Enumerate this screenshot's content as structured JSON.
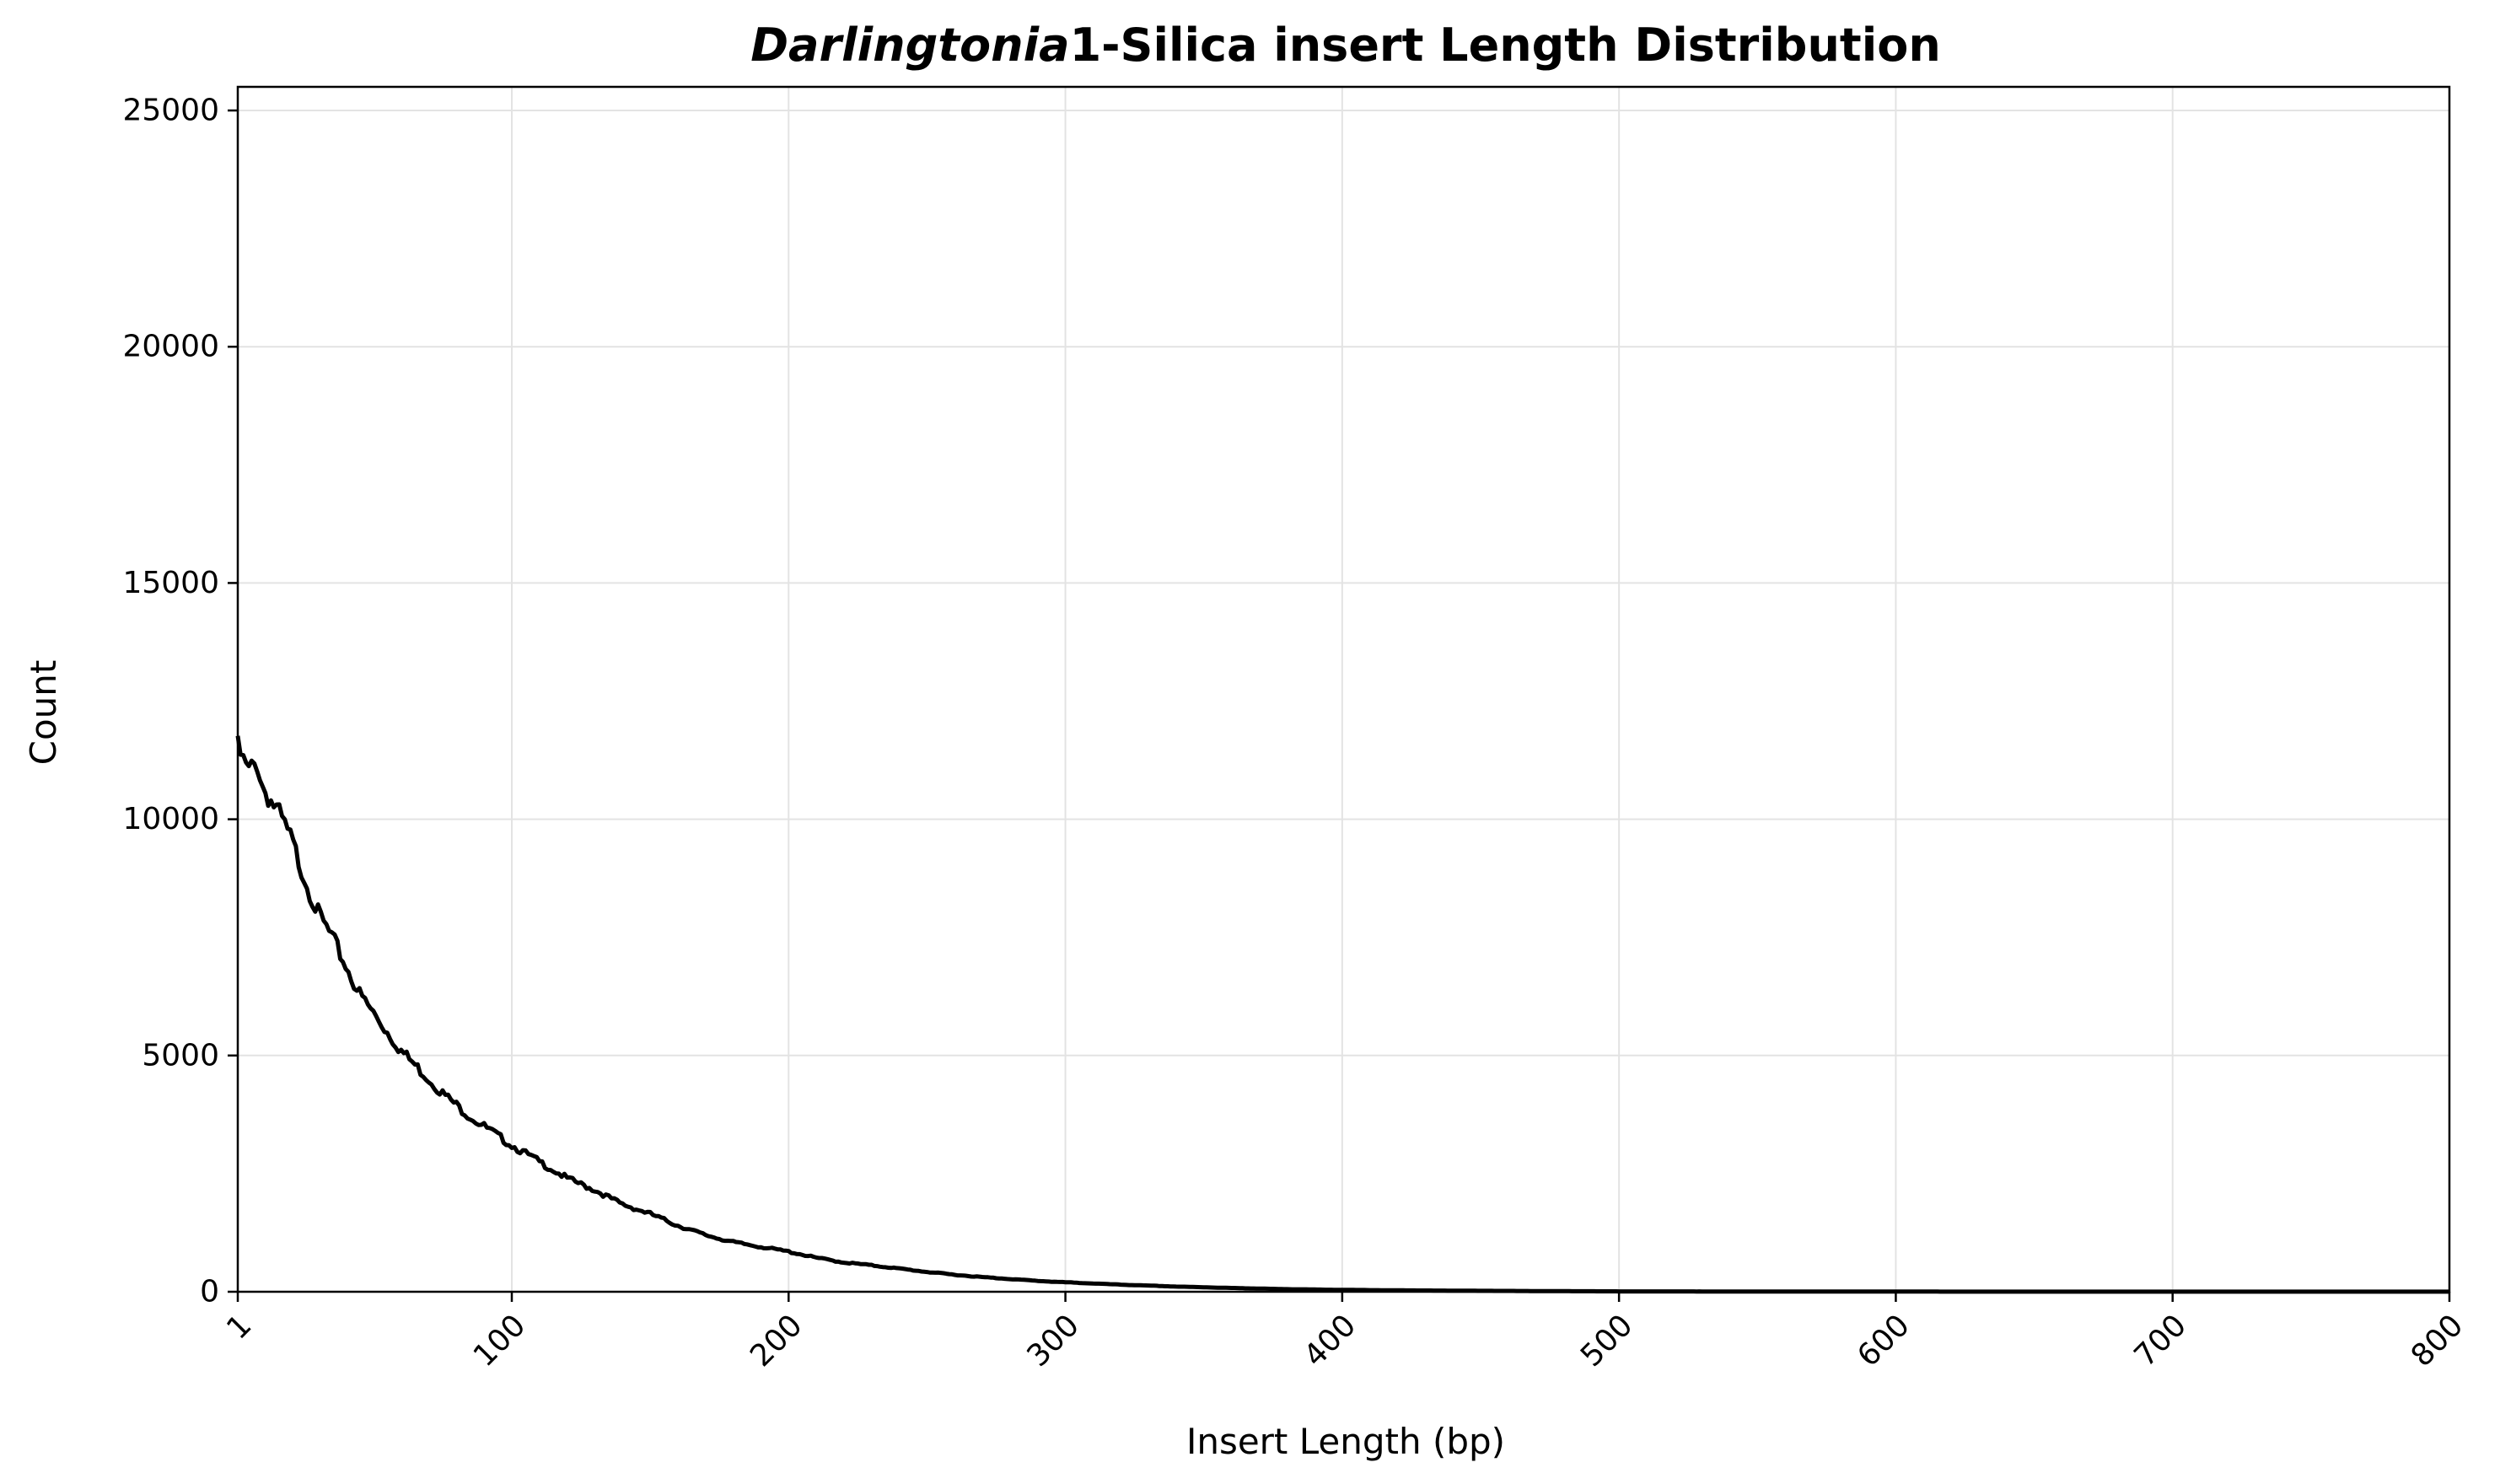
{
  "chart_data": {
    "type": "line",
    "title_italic": "Darlingtonia",
    "title_rest": "1-Silica insert Length Distribution",
    "xlabel": "Insert Length (bp)",
    "ylabel": "Count",
    "xlim": [
      1,
      800
    ],
    "ylim": [
      0,
      25500
    ],
    "xticks": [
      1,
      100,
      200,
      300,
      400,
      500,
      600,
      700,
      800
    ],
    "yticks": [
      0,
      5000,
      10000,
      15000,
      20000,
      25000
    ],
    "grid": true,
    "line_color": "#000000",
    "series": [
      {
        "x": [
          1,
          3,
          5,
          8,
          10,
          15,
          20,
          25,
          30,
          35,
          40,
          45,
          50,
          55,
          60,
          65,
          70,
          75,
          80,
          85,
          90,
          95,
          100,
          110,
          120,
          130,
          140,
          150,
          160,
          170,
          180,
          190,
          200,
          210,
          220,
          230,
          240,
          250,
          260,
          270,
          280,
          290,
          300,
          320,
          340,
          360,
          380,
          400,
          420,
          450,
          480,
          500,
          550,
          600,
          650,
          700,
          750,
          800
        ],
        "y": [
          11500,
          11200,
          11000,
          11200,
          10700,
          10200,
          9600,
          8800,
          8000,
          7500,
          6900,
          6300,
          5900,
          5500,
          5100,
          4800,
          4500,
          4200,
          3950,
          3700,
          3500,
          3300,
          3100,
          2750,
          2400,
          2150,
          1850,
          1650,
          1400,
          1200,
          1050,
          950,
          850,
          720,
          620,
          560,
          490,
          420,
          360,
          310,
          270,
          230,
          200,
          150,
          110,
          80,
          55,
          40,
          30,
          20,
          12,
          8,
          5,
          3,
          2,
          1,
          1,
          1
        ]
      }
    ]
  }
}
